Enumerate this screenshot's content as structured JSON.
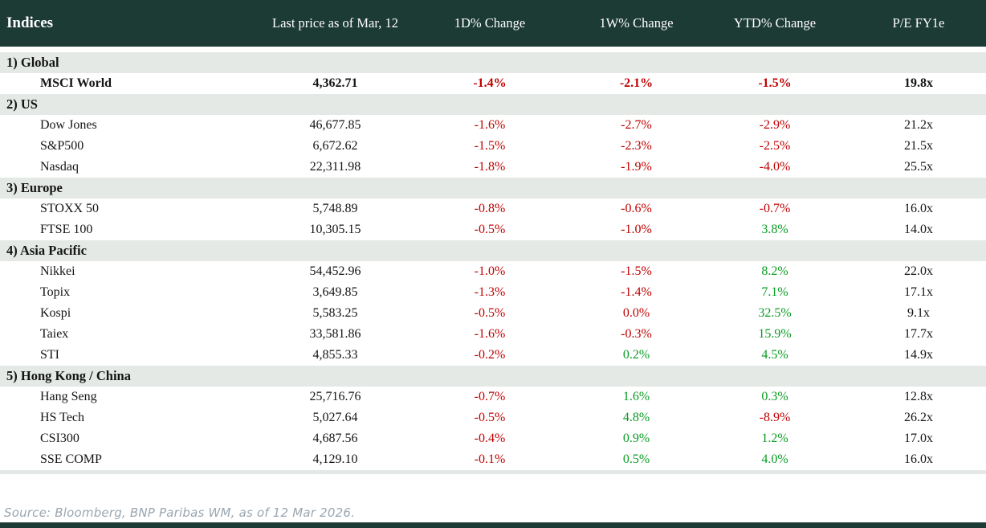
{
  "table": {
    "columns": [
      "Indices",
      "Last price as of Mar, 12",
      "1D% Change",
      "1W% Change",
      "YTD% Change",
      "P/E FY1e"
    ],
    "sections": [
      {
        "label": "1) Global",
        "rows": [
          {
            "name": "MSCI World",
            "price": "4,362.71",
            "bold": true,
            "changes": [
              {
                "v": "-1.4%",
                "dir": "down"
              },
              {
                "v": "-2.1%",
                "dir": "down"
              },
              {
                "v": "-1.5%",
                "dir": "down"
              }
            ],
            "pe": "19.8x"
          }
        ]
      },
      {
        "label": "2) US",
        "rows": [
          {
            "name": "Dow Jones",
            "price": "46,677.85",
            "changes": [
              {
                "v": "-1.6%",
                "dir": "down"
              },
              {
                "v": "-2.7%",
                "dir": "down"
              },
              {
                "v": "-2.9%",
                "dir": "down"
              }
            ],
            "pe": "21.2x"
          },
          {
            "name": "S&P500",
            "price": "6,672.62",
            "changes": [
              {
                "v": "-1.5%",
                "dir": "down"
              },
              {
                "v": "-2.3%",
                "dir": "down"
              },
              {
                "v": "-2.5%",
                "dir": "down"
              }
            ],
            "pe": "21.5x"
          },
          {
            "name": "Nasdaq",
            "price": "22,311.98",
            "changes": [
              {
                "v": "-1.8%",
                "dir": "down"
              },
              {
                "v": "-1.9%",
                "dir": "down"
              },
              {
                "v": "-4.0%",
                "dir": "down"
              }
            ],
            "pe": "25.5x"
          }
        ]
      },
      {
        "label": "3) Europe",
        "rows": [
          {
            "name": "STOXX 50",
            "price": "5,748.89",
            "changes": [
              {
                "v": "-0.8%",
                "dir": "down"
              },
              {
                "v": "-0.6%",
                "dir": "down"
              },
              {
                "v": "-0.7%",
                "dir": "down"
              }
            ],
            "pe": "16.0x"
          },
          {
            "name": "FTSE 100",
            "price": "10,305.15",
            "changes": [
              {
                "v": "-0.5%",
                "dir": "down"
              },
              {
                "v": "-1.0%",
                "dir": "down"
              },
              {
                "v": "3.8%",
                "dir": "up"
              }
            ],
            "pe": "14.0x"
          }
        ]
      },
      {
        "label": "4) Asia Pacific",
        "rows": [
          {
            "name": "Nikkei",
            "price": "54,452.96",
            "changes": [
              {
                "v": "-1.0%",
                "dir": "down"
              },
              {
                "v": "-1.5%",
                "dir": "down"
              },
              {
                "v": "8.2%",
                "dir": "up"
              }
            ],
            "pe": "22.0x"
          },
          {
            "name": "Topix",
            "price": "3,649.85",
            "changes": [
              {
                "v": "-1.3%",
                "dir": "down"
              },
              {
                "v": "-1.4%",
                "dir": "down"
              },
              {
                "v": "7.1%",
                "dir": "up"
              }
            ],
            "pe": "17.1x"
          },
          {
            "name": "Kospi",
            "price": "5,583.25",
            "changes": [
              {
                "v": "-0.5%",
                "dir": "down"
              },
              {
                "v": "0.0%",
                "dir": "down"
              },
              {
                "v": "32.5%",
                "dir": "up"
              }
            ],
            "pe": "9.1x"
          },
          {
            "name": "Taiex",
            "price": "33,581.86",
            "changes": [
              {
                "v": "-1.6%",
                "dir": "down"
              },
              {
                "v": "-0.3%",
                "dir": "down"
              },
              {
                "v": "15.9%",
                "dir": "up"
              }
            ],
            "pe": "17.7x"
          },
          {
            "name": "STI",
            "price": "4,855.33",
            "changes": [
              {
                "v": "-0.2%",
                "dir": "down"
              },
              {
                "v": "0.2%",
                "dir": "up"
              },
              {
                "v": "4.5%",
                "dir": "up"
              }
            ],
            "pe": "14.9x"
          }
        ]
      },
      {
        "label": "5) Hong Kong / China",
        "rows": [
          {
            "name": "Hang Seng",
            "price": "25,716.76",
            "changes": [
              {
                "v": "-0.7%",
                "dir": "down"
              },
              {
                "v": "1.6%",
                "dir": "up"
              },
              {
                "v": "0.3%",
                "dir": "up"
              }
            ],
            "pe": "12.8x"
          },
          {
            "name": "HS Tech",
            "price": "5,027.64",
            "changes": [
              {
                "v": "-0.5%",
                "dir": "down"
              },
              {
                "v": "4.8%",
                "dir": "up"
              },
              {
                "v": "-8.9%",
                "dir": "down"
              }
            ],
            "pe": "26.2x"
          },
          {
            "name": "CSI300",
            "price": "4,687.56",
            "changes": [
              {
                "v": "-0.4%",
                "dir": "down"
              },
              {
                "v": "0.9%",
                "dir": "up"
              },
              {
                "v": "1.2%",
                "dir": "up"
              }
            ],
            "pe": "17.0x"
          },
          {
            "name": "SSE COMP",
            "price": "4,129.10",
            "changes": [
              {
                "v": "-0.1%",
                "dir": "down"
              },
              {
                "v": "0.5%",
                "dir": "up"
              },
              {
                "v": "4.0%",
                "dir": "up"
              }
            ],
            "pe": "16.0x"
          }
        ]
      }
    ]
  },
  "footer": {
    "source": "Source: Bloomberg, BNP Paribas WM, as of 12 Mar 2026."
  },
  "colors": {
    "header_bg": "#1d3b35",
    "header_text": "#ffffff",
    "section_bg": "#e4e9e5",
    "negative": "#c00000",
    "positive": "#089c22",
    "source_text": "#9aa6b0",
    "bottom_bar": "#1d3b35"
  }
}
